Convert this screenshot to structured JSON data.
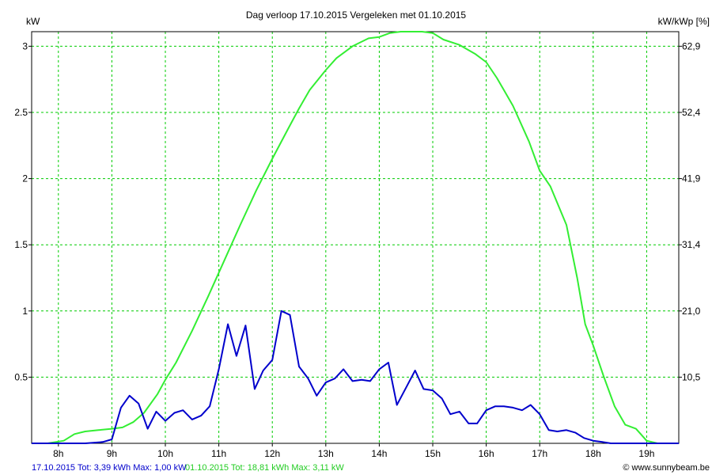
{
  "chart_data": {
    "type": "line",
    "title": "Dag  verloop 17.10.2015   Vergeleken met 01.10.2015",
    "ylabel_left": "kW",
    "ylabel_right": "kW/kWp [%]",
    "xlim": [
      7.5,
      19.6
    ],
    "ylim": [
      0,
      3.11
    ],
    "x_ticks": [
      {
        "value": 8,
        "label": "8h"
      },
      {
        "value": 9,
        "label": "9h"
      },
      {
        "value": 10,
        "label": "10h"
      },
      {
        "value": 11,
        "label": "11h"
      },
      {
        "value": 12,
        "label": "12h"
      },
      {
        "value": 13,
        "label": "13h"
      },
      {
        "value": 14,
        "label": "14h"
      },
      {
        "value": 15,
        "label": "15h"
      },
      {
        "value": 16,
        "label": "16h"
      },
      {
        "value": 17,
        "label": "17h"
      },
      {
        "value": 18,
        "label": "18h"
      },
      {
        "value": 19,
        "label": "19h"
      }
    ],
    "y_ticks_left": [
      {
        "value": 0.5,
        "label": "0.5"
      },
      {
        "value": 1,
        "label": "1"
      },
      {
        "value": 1.5,
        "label": "1.5"
      },
      {
        "value": 2,
        "label": "2"
      },
      {
        "value": 2.5,
        "label": "2.5"
      },
      {
        "value": 3,
        "label": "3"
      }
    ],
    "y_ticks_right": [
      {
        "value": 0.5,
        "label": "10,5"
      },
      {
        "value": 1,
        "label": "21,0"
      },
      {
        "value": 1.5,
        "label": "31,4"
      },
      {
        "value": 2,
        "label": "41,9"
      },
      {
        "value": 2.5,
        "label": "52,4"
      },
      {
        "value": 3,
        "label": "62,9"
      }
    ],
    "grid": true,
    "series": [
      {
        "name": "17.10.2015 Tot: 3,39 kWh Max: 1,00 kW",
        "color": "#0000cc",
        "x": [
          7.5,
          8.0,
          8.5,
          8.83,
          9.0,
          9.17,
          9.33,
          9.5,
          9.67,
          9.83,
          10.0,
          10.17,
          10.33,
          10.5,
          10.67,
          10.83,
          11.0,
          11.17,
          11.33,
          11.5,
          11.67,
          11.83,
          12.0,
          12.17,
          12.33,
          12.5,
          12.67,
          12.83,
          13.0,
          13.17,
          13.33,
          13.5,
          13.67,
          13.83,
          14.0,
          14.17,
          14.33,
          14.5,
          14.67,
          14.83,
          15.0,
          15.17,
          15.33,
          15.5,
          15.67,
          15.83,
          16.0,
          16.17,
          16.33,
          16.5,
          16.67,
          16.83,
          17.0,
          17.17,
          17.33,
          17.5,
          17.67,
          17.83,
          18.0,
          18.17,
          18.33,
          18.5,
          18.67,
          18.83,
          19.0,
          19.2,
          19.6
        ],
        "values": [
          0.0,
          0.0,
          0.0,
          0.01,
          0.03,
          0.27,
          0.36,
          0.3,
          0.11,
          0.24,
          0.17,
          0.23,
          0.25,
          0.18,
          0.21,
          0.28,
          0.56,
          0.9,
          0.66,
          0.89,
          0.41,
          0.55,
          0.63,
          1.0,
          0.97,
          0.58,
          0.49,
          0.36,
          0.46,
          0.49,
          0.56,
          0.47,
          0.48,
          0.47,
          0.56,
          0.61,
          0.29,
          0.42,
          0.55,
          0.41,
          0.4,
          0.34,
          0.22,
          0.24,
          0.15,
          0.15,
          0.25,
          0.28,
          0.28,
          0.27,
          0.25,
          0.29,
          0.22,
          0.1,
          0.09,
          0.1,
          0.08,
          0.04,
          0.02,
          0.01,
          0.0,
          0.0,
          0.0,
          0.0,
          0.0,
          0.0,
          0.0
        ]
      },
      {
        "name": "01.10.2015 Tot: 18,81 kWh Max: 3,11 kW",
        "color": "#33ee33",
        "x": [
          7.5,
          7.8,
          8.1,
          8.3,
          8.5,
          8.75,
          9.0,
          9.2,
          9.4,
          9.6,
          9.85,
          10.0,
          10.2,
          10.5,
          10.8,
          11.1,
          11.4,
          11.7,
          12.0,
          12.3,
          12.5,
          12.7,
          13.0,
          13.2,
          13.5,
          13.8,
          14.0,
          14.2,
          14.4,
          14.6,
          14.8,
          15.0,
          15.2,
          15.5,
          15.8,
          16.0,
          16.2,
          16.5,
          16.8,
          17.0,
          17.2,
          17.5,
          17.7,
          17.85,
          18.0,
          18.2,
          18.4,
          18.6,
          18.8,
          19.0,
          19.2,
          19.6
        ],
        "values": [
          0.0,
          0.0,
          0.02,
          0.07,
          0.09,
          0.1,
          0.11,
          0.12,
          0.16,
          0.23,
          0.37,
          0.48,
          0.61,
          0.85,
          1.11,
          1.38,
          1.65,
          1.91,
          2.15,
          2.38,
          2.53,
          2.67,
          2.82,
          2.91,
          3.0,
          3.06,
          3.07,
          3.1,
          3.11,
          3.11,
          3.11,
          3.1,
          3.05,
          3.01,
          2.94,
          2.88,
          2.76,
          2.55,
          2.28,
          2.06,
          1.94,
          1.65,
          1.25,
          0.9,
          0.74,
          0.5,
          0.28,
          0.14,
          0.11,
          0.02,
          0.0,
          0.0
        ]
      }
    ],
    "legend_placement": "bottom-left",
    "watermark": "© www.sunnybeam.be"
  },
  "legend": {
    "series1": "17.10.2015 Tot: 3,39 kWh Max: 1,00 kW",
    "series2": "01.10.2015 Tot: 18,81 kWh Max: 3,11 kW",
    "watermark": "© www.sunnybeam.be"
  }
}
